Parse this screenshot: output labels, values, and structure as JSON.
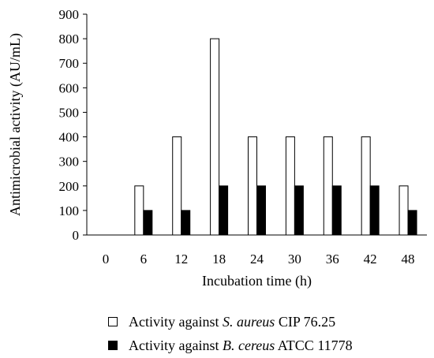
{
  "chart_data": {
    "type": "bar",
    "xlabel": "Incubation time (h)",
    "ylabel": "Antimicrobial activity (AU/mL)",
    "categories": [
      "0",
      "6",
      "12",
      "18",
      "24",
      "30",
      "36",
      "42",
      "48"
    ],
    "ylim": [
      0,
      900
    ],
    "yticks": [
      0,
      100,
      200,
      300,
      400,
      500,
      600,
      700,
      800,
      900
    ],
    "series": [
      {
        "name": "Activity against S. aureus CIP 76.25",
        "name_prefix": "Activity against ",
        "name_italic": "S. aureus",
        "name_suffix": " CIP 76.25",
        "fill": "#ffffff",
        "values": [
          0,
          200,
          400,
          800,
          400,
          400,
          400,
          400,
          200
        ]
      },
      {
        "name": "Activity against B. cereus ATCC 11778",
        "name_prefix": "Activity against ",
        "name_italic": "B. cereus",
        "name_suffix": " ATCC 11778",
        "fill": "#000000",
        "values": [
          0,
          100,
          100,
          200,
          200,
          200,
          200,
          200,
          100
        ]
      }
    ],
    "legend_position": "bottom-center",
    "grid": false
  }
}
